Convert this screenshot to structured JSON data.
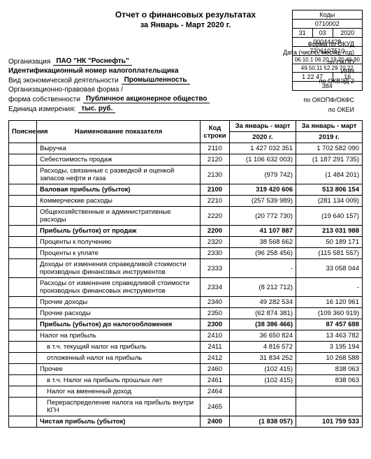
{
  "header": {
    "title": "Отчет о финансовых результатах",
    "period": "за Январь - Март 2020 г.",
    "form_okud_lbl": "Форма по ОКУД",
    "date_lbl": "Дата (число, месяц, год)",
    "okpo_lbl": "по ОКПО",
    "inn_lbl": "ИНН",
    "okved_lbl": "по ОКВЭД 2",
    "okopf_lbl": "по ОКОПФ/ОКФС",
    "okei_lbl": "по ОКЕИ",
    "org_lbl": "Организация",
    "org_val": "ПАО \"НК \"Роснефть\"",
    "taxid_lbl": "Идентификационный номер налогоплательщика",
    "activity_lbl": "Вид экономической деятельности",
    "activity_val": "Промышленность",
    "legal_lbl": "Организационно-правовая форма /",
    "own_lbl": "форма собственности",
    "own_val": "Публичное акционерное общество",
    "unit_lbl": "Единица измерения:",
    "unit_val": "тыс. руб."
  },
  "codes": {
    "title": "Коды",
    "okud": "0710002",
    "d": "31",
    "m": "03",
    "y": "2020",
    "okpo": "00044428",
    "inn": "7706107510",
    "okved1": "06.10.1 06.20 19.20 46.90",
    "okved2": "49.50.11 52.29 70.22",
    "okopf": "1 22 47",
    "okfs": "16",
    "okei": "384"
  },
  "tbl": {
    "h_expl": "Пояснения",
    "h_name": "Наименование показателя",
    "h_code": "Код строки",
    "h_cur1": "За январь - март",
    "h_cur2": "2020 г.",
    "h_prev1": "За январь - март",
    "h_prev2": "2019 г."
  },
  "rows": [
    {
      "name": "Выручка",
      "code": "2110",
      "cur": "1 427 032 351",
      "prev": "1 702 582 090",
      "bold": false
    },
    {
      "name": "Себестоимость продаж",
      "code": "2120",
      "cur": "(1 106 632 003)",
      "prev": "(1 187 291 735)",
      "bold": false
    },
    {
      "name": "Расходы, связанные с разведкой и оценкой запасов нефти и газа",
      "code": "2130",
      "cur": "(979 742)",
      "prev": "(1 484 201)",
      "bold": false
    },
    {
      "name": "Валовая прибыль (убыток)",
      "code": "2100",
      "cur": "319 420 606",
      "prev": "513 806 154",
      "bold": true
    },
    {
      "name": "Коммерческие расходы",
      "code": "2210",
      "cur": "(257 539 989)",
      "prev": "(281 134 009)",
      "bold": false
    },
    {
      "name": "Общехозяйственные и административные расходы",
      "code": "2220",
      "cur": "(20 772 730)",
      "prev": "(19 640 157)",
      "bold": false
    },
    {
      "name": "Прибыль (убыток) от продаж",
      "code": "2200",
      "cur": "41 107 887",
      "prev": "213 031 988",
      "bold": true
    },
    {
      "name": "Проценты к получению",
      "code": "2320",
      "cur": "38 568 662",
      "prev": "50 189 171",
      "bold": false
    },
    {
      "name": "Проценты к уплате",
      "code": "2330",
      "cur": "(96 258 456)",
      "prev": "(115 581 557)",
      "bold": false
    },
    {
      "name": "Доходы от изменения справедливой стоимости производных финансовых инструментов",
      "code": "2333",
      "cur": "-",
      "prev": "33 058 044",
      "bold": false
    },
    {
      "name": "Расходы от изменения справедливой стоимости производных финансовых инструментов",
      "code": "2334",
      "cur": "(8 212 712)",
      "prev": "-",
      "bold": false
    },
    {
      "name": "Прочие доходы",
      "code": "2340",
      "cur": "49 282 534",
      "prev": "16 120 961",
      "bold": false
    },
    {
      "name": "Прочие расходы",
      "code": "2350",
      "cur": "(62 874 381)",
      "prev": "(109 360 919)",
      "bold": false
    },
    {
      "name": "Прибыль (убыток) до налогообложения",
      "code": "2300",
      "cur": "(38 386 466)",
      "prev": "87 457 688",
      "bold": true
    },
    {
      "name": "Налог на прибыль",
      "code": "2410",
      "cur": "36 650 824",
      "prev": "13 463 782",
      "bold": false
    },
    {
      "name": "в т.ч.\n текущий налог на прибыль",
      "code": "2411",
      "cur": "4 816 572",
      "prev": "3 195 194",
      "bold": false,
      "indent": true,
      "small": true
    },
    {
      "name": "отложенный налог на прибыль",
      "code": "2412",
      "cur": "31 834 252",
      "prev": "10 268 588",
      "bold": false,
      "indent": true
    },
    {
      "name": "Прочее",
      "code": "2460",
      "cur": "(102 415)",
      "prev": "838 063",
      "bold": false
    },
    {
      "name": "в т.ч.\n Налог на прибыль прошлых лет",
      "code": "2461",
      "cur": "(102 415)",
      "prev": "838 063",
      "bold": false,
      "indent": true,
      "small": true
    },
    {
      "name": "Налог на вмененный доход",
      "code": "2464",
      "cur": "",
      "prev": "",
      "bold": false,
      "indent": true
    },
    {
      "name": "Перераспределение налога на прибыль внутри КГН",
      "code": "2465",
      "cur": "",
      "prev": "",
      "bold": false,
      "indent": true
    },
    {
      "name": "Чистая прибыль (убыток)",
      "code": "2400",
      "cur": "(1 838 057)",
      "prev": "101 759 533",
      "bold": true
    }
  ]
}
